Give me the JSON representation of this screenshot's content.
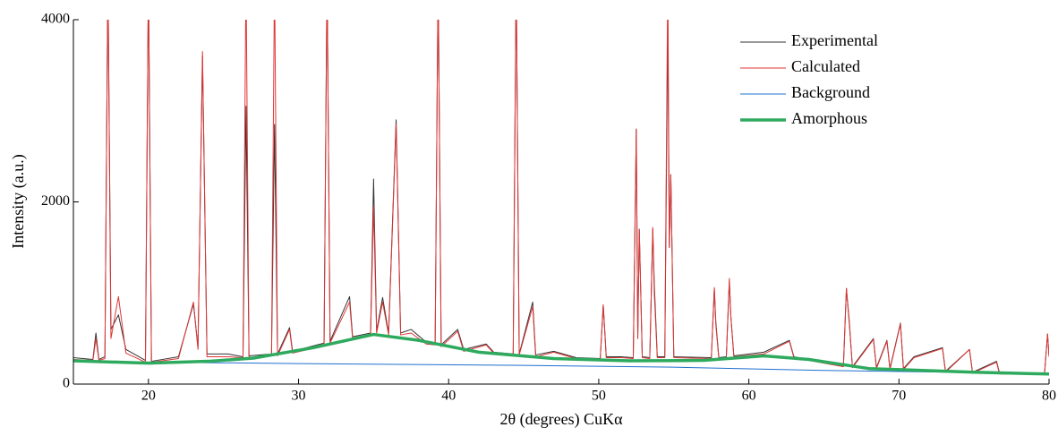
{
  "chart_data": {
    "type": "line",
    "xlabel": "2θ (degrees) CuKα",
    "ylabel": "Intensity (a.u.)",
    "xlim": [
      15,
      80
    ],
    "ylim": [
      0,
      4000
    ],
    "xticks": [
      20,
      30,
      40,
      50,
      60,
      70,
      80
    ],
    "yticks": [
      0,
      2000,
      4000
    ],
    "legend": "upper-right",
    "x": [
      15,
      16.3,
      16.5,
      16.7,
      17.1,
      17.3,
      17.5,
      18.0,
      18.5,
      19.8,
      20.0,
      20.2,
      22.0,
      23.0,
      23.3,
      23.6,
      23.9,
      25.3,
      26.3,
      26.5,
      26.7,
      28.2,
      28.4,
      28.6,
      29.4,
      29.6,
      31.7,
      31.9,
      32.1,
      33.4,
      33.6,
      34.8,
      35.0,
      35.2,
      35.6,
      36.0,
      36.5,
      36.8,
      37.5,
      38.5,
      39.1,
      39.3,
      39.5,
      40.6,
      41.0,
      42.5,
      43.0,
      44.3,
      44.5,
      44.7,
      45.6,
      45.8,
      47.0,
      48.5,
      50.1,
      50.3,
      50.5,
      51.5,
      52.3,
      52.5,
      52.6,
      52.7,
      52.9,
      53.4,
      53.6,
      53.7,
      53.9,
      54.4,
      54.6,
      54.7,
      54.8,
      55.0,
      57.5,
      57.7,
      57.8,
      58.0,
      58.5,
      58.7,
      58.8,
      59.0,
      61.0,
      62.7,
      63.0,
      66.3,
      66.5,
      66.7,
      66.9,
      68.3,
      68.5,
      69.2,
      69.4,
      70.1,
      70.3,
      71.0,
      72.9,
      73.1,
      74.7,
      74.9,
      76.5,
      76.7,
      79.7,
      79.9,
      80
    ],
    "series": [
      {
        "name": "Experimental",
        "color": "#333333",
        "width": 1,
        "values": [
          290,
          270,
          560,
          270,
          300,
          4500,
          600,
          760,
          380,
          260,
          4500,
          250,
          300,
          880,
          400,
          3600,
          330,
          330,
          300,
          3050,
          310,
          330,
          2850,
          330,
          620,
          360,
          450,
          4500,
          470,
          960,
          520,
          560,
          2250,
          580,
          950,
          560,
          2900,
          560,
          600,
          460,
          450,
          4500,
          430,
          600,
          380,
          440,
          350,
          330,
          4500,
          330,
          900,
          320,
          360,
          290,
          280,
          870,
          300,
          300,
          290,
          2800,
          500,
          1700,
          300,
          290,
          1700,
          1100,
          300,
          300,
          4000,
          1500,
          2300,
          300,
          290,
          1050,
          680,
          290,
          300,
          1130,
          750,
          310,
          350,
          480,
          300,
          200,
          1050,
          650,
          190,
          500,
          180,
          480,
          170,
          670,
          170,
          300,
          400,
          140,
          380,
          130,
          250,
          120,
          120,
          550,
          300
        ]
      },
      {
        "name": "Calculated",
        "color": "#e03535",
        "width": 1,
        "values": [
          270,
          260,
          500,
          260,
          280,
          4500,
          500,
          960,
          340,
          240,
          4500,
          240,
          280,
          900,
          380,
          3650,
          300,
          300,
          290,
          4500,
          290,
          310,
          4500,
          310,
          600,
          340,
          420,
          4500,
          450,
          900,
          500,
          540,
          1950,
          560,
          900,
          540,
          2850,
          540,
          560,
          440,
          430,
          4500,
          410,
          580,
          360,
          430,
          340,
          320,
          4500,
          320,
          850,
          300,
          350,
          280,
          270,
          870,
          290,
          290,
          280,
          2800,
          500,
          1700,
          290,
          280,
          1720,
          1000,
          290,
          290,
          4500,
          1500,
          2300,
          290,
          280,
          1060,
          650,
          280,
          290,
          1160,
          740,
          300,
          330,
          470,
          290,
          190,
          1050,
          680,
          180,
          490,
          170,
          470,
          160,
          660,
          160,
          290,
          390,
          130,
          380,
          120,
          240,
          110,
          110,
          550,
          300
        ]
      },
      {
        "name": "Background",
        "color": "#1f6fd0",
        "width": 1,
        "x": [
          15,
          30,
          45,
          55,
          65,
          80
        ],
        "values": [
          250,
          225,
          205,
          185,
          150,
          115
        ]
      },
      {
        "name": "Amorphous",
        "color": "#2eaa5e",
        "width": 3.5,
        "x": [
          15,
          20,
          24,
          27,
          31,
          35,
          38,
          42,
          47,
          52,
          57,
          61,
          64,
          68,
          75,
          80
        ],
        "values": [
          255,
          230,
          250,
          285,
          400,
          545,
          480,
          350,
          280,
          255,
          260,
          310,
          270,
          170,
          130,
          110
        ]
      }
    ]
  }
}
